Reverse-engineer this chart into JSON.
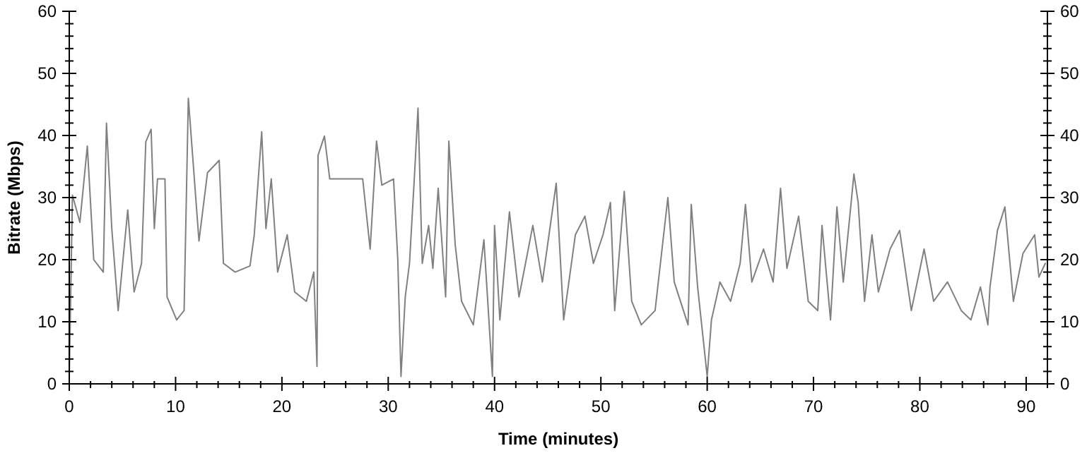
{
  "chart_data": {
    "type": "line",
    "xlabel": "Time (minutes)",
    "ylabel": "Bitrate (Mbps)",
    "xlim": [
      0,
      92
    ],
    "ylim": [
      0,
      60
    ],
    "y2lim": [
      0,
      60
    ],
    "xticks": [
      0,
      {
        "value": 2,
        "label": null
      },
      {
        "value": 4,
        "label": null
      },
      {
        "value": 6,
        "label": null
      },
      {
        "value": 8,
        "label": null
      },
      10,
      {
        "value": 12,
        "label": null
      },
      {
        "value": 14,
        "label": null
      },
      {
        "value": 16,
        "label": null
      },
      {
        "value": 18,
        "label": null
      },
      20,
      {
        "value": 22,
        "label": null
      },
      {
        "value": 24,
        "label": null
      },
      {
        "value": 26,
        "label": null
      },
      {
        "value": 28,
        "label": null
      },
      30,
      {
        "value": 32,
        "label": null
      },
      {
        "value": 34,
        "label": null
      },
      {
        "value": 36,
        "label": null
      },
      {
        "value": 38,
        "label": null
      },
      40,
      {
        "value": 42,
        "label": null
      },
      {
        "value": 44,
        "label": null
      },
      {
        "value": 46,
        "label": null
      },
      {
        "value": 48,
        "label": null
      },
      50,
      {
        "value": 52,
        "label": null
      },
      {
        "value": 54,
        "label": null
      },
      {
        "value": 56,
        "label": null
      },
      {
        "value": 58,
        "label": null
      },
      60,
      {
        "value": 62,
        "label": null
      },
      {
        "value": 64,
        "label": null
      },
      {
        "value": 66,
        "label": null
      },
      {
        "value": 68,
        "label": null
      },
      70,
      {
        "value": 72,
        "label": null
      },
      {
        "value": 74,
        "label": null
      },
      {
        "value": 76,
        "label": null
      },
      {
        "value": 78,
        "label": null
      },
      80,
      {
        "value": 82,
        "label": null
      },
      {
        "value": 84,
        "label": null
      },
      {
        "value": 86,
        "label": null
      },
      {
        "value": 88,
        "label": null
      },
      90,
      {
        "value": 92,
        "label": null
      }
    ],
    "yticks": [
      0,
      {
        "value": 2,
        "label": null
      },
      {
        "value": 4,
        "label": null
      },
      {
        "value": 6,
        "label": null
      },
      {
        "value": 8,
        "label": null
      },
      10,
      {
        "value": 12,
        "label": null
      },
      {
        "value": 14,
        "label": null
      },
      {
        "value": 16,
        "label": null
      },
      {
        "value": 18,
        "label": null
      },
      20,
      {
        "value": 22,
        "label": null
      },
      {
        "value": 24,
        "label": null
      },
      {
        "value": 26,
        "label": null
      },
      {
        "value": 28,
        "label": null
      },
      30,
      {
        "value": 32,
        "label": null
      },
      {
        "value": 34,
        "label": null
      },
      {
        "value": 36,
        "label": null
      },
      {
        "value": 38,
        "label": null
      },
      40,
      {
        "value": 42,
        "label": null
      },
      {
        "value": 44,
        "label": null
      },
      {
        "value": 46,
        "label": null
      },
      {
        "value": 48,
        "label": null
      },
      50,
      {
        "value": 52,
        "label": null
      },
      {
        "value": 54,
        "label": null
      },
      {
        "value": 56,
        "label": null
      },
      {
        "value": 58,
        "label": null
      },
      60
    ],
    "y2ticks": [
      0,
      {
        "value": 2,
        "label": null
      },
      {
        "value": 4,
        "label": null
      },
      {
        "value": 6,
        "label": null
      },
      {
        "value": 8,
        "label": null
      },
      10,
      {
        "value": 12,
        "label": null
      },
      {
        "value": 14,
        "label": null
      },
      {
        "value": 16,
        "label": null
      },
      {
        "value": 18,
        "label": null
      },
      20,
      {
        "value": 22,
        "label": null
      },
      {
        "value": 24,
        "label": null
      },
      {
        "value": 26,
        "label": null
      },
      {
        "value": 28,
        "label": null
      },
      30,
      {
        "value": 32,
        "label": null
      },
      {
        "value": 34,
        "label": null
      },
      {
        "value": 36,
        "label": null
      },
      {
        "value": 38,
        "label": null
      },
      40,
      {
        "value": 42,
        "label": null
      },
      {
        "value": 44,
        "label": null
      },
      {
        "value": 46,
        "label": null
      },
      {
        "value": 48,
        "label": null
      },
      50,
      {
        "value": 52,
        "label": null
      },
      {
        "value": 54,
        "label": null
      },
      {
        "value": 56,
        "label": null
      },
      {
        "value": 58,
        "label": null
      },
      60
    ],
    "grid": false,
    "marker": "none",
    "line_style": "solid",
    "series": [
      {
        "color": "#808080",
        "x": [
          0,
          0.3,
          1,
          1.7,
          2.3,
          3.2,
          3.5,
          4,
          4.6,
          5.5,
          6.1,
          6.8,
          7.2,
          7.7,
          8,
          8.3,
          9,
          9.2,
          10.1,
          10.8,
          11.2,
          11.7,
          12.2,
          13,
          14.1,
          14.5,
          15.6,
          17,
          17.4,
          18.1,
          18.5,
          19,
          19.6,
          20.5,
          21.2,
          22.3,
          23,
          23.3,
          23.4,
          24,
          24.5,
          26,
          27.6,
          28.3,
          28.9,
          29.4,
          30.5,
          30.9,
          31.2,
          31.6,
          32,
          32.5,
          32.8,
          33.2,
          33.8,
          34.2,
          34.7,
          35.4,
          35.7,
          36.3,
          36.9,
          38,
          39,
          39.8,
          40,
          40.5,
          41.4,
          42.3,
          43.6,
          44.5,
          45.8,
          46.5,
          47.6,
          48.5,
          49.3,
          50.2,
          50.9,
          51.3,
          52.2,
          52.9,
          53.8,
          55.1,
          56.3,
          56.9,
          58.2,
          58.5,
          59.1,
          60,
          60.4,
          61.2,
          62.2,
          63.1,
          63.6,
          64.2,
          65.3,
          66.2,
          66.9,
          67.5,
          68.6,
          69.5,
          70.4,
          70.8,
          71.6,
          72.2,
          72.8,
          73.5,
          73.8,
          74.2,
          74.8,
          75.5,
          76.1,
          77.2,
          78.1,
          79.2,
          80.4,
          81.3,
          82.6,
          83.9,
          84.8,
          85.7,
          86.4,
          86.6,
          87.3,
          88,
          88.8,
          89.7,
          90.8,
          91.2,
          91.8
        ],
        "values": [
          1.2,
          30.4,
          26,
          38.3,
          20,
          18,
          42,
          25,
          11.8,
          28,
          14.8,
          19.4,
          39,
          41,
          25,
          33,
          33,
          14,
          10.3,
          11.8,
          46,
          34.5,
          23,
          34,
          36,
          19.4,
          18,
          19,
          24,
          40.6,
          25,
          33,
          18,
          24,
          14.8,
          13.3,
          18,
          2.8,
          36.8,
          39.9,
          33,
          33,
          33,
          21.7,
          39.1,
          32,
          33,
          20,
          1.2,
          14,
          19.4,
          34.5,
          44.4,
          19.4,
          25.5,
          18.6,
          31.5,
          14,
          39.1,
          22.4,
          13.3,
          9.5,
          23.2,
          1.2,
          25.5,
          10.3,
          27.7,
          14,
          25.5,
          16.4,
          32.3,
          10.3,
          24,
          27,
          19.4,
          24,
          29.2,
          11.8,
          31,
          13.3,
          9.5,
          11.8,
          30,
          16.4,
          9.5,
          28.9,
          15.6,
          1.2,
          10.3,
          16.4,
          13.3,
          19.4,
          28.9,
          16.4,
          21.7,
          16.4,
          31.5,
          18.6,
          27,
          13.3,
          11.8,
          25.5,
          10.3,
          28.5,
          16.4,
          28.5,
          33.8,
          29.2,
          13.3,
          24,
          14.8,
          21.7,
          24.7,
          11.8,
          21.7,
          13.3,
          16.4,
          11.8,
          10.3,
          15.6,
          9.5,
          15.6,
          24.7,
          28.5,
          13.3,
          21,
          24,
          17.2,
          19.4
        ]
      }
    ]
  }
}
